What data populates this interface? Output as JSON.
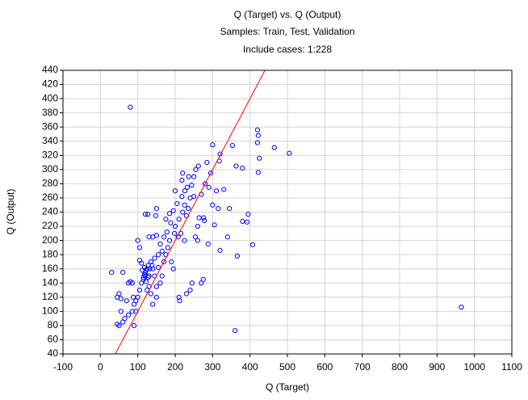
{
  "chart_data": {
    "type": "scatter",
    "title": "Q (Target) vs. Q (Output)",
    "subtitle": "Samples: Train, Test, Validation",
    "annotation": "Include cases: 1:228",
    "x_label": "Q (Target)",
    "y_label": "Q (Output)",
    "xlim": [
      -100,
      1100
    ],
    "ylim": [
      40,
      440
    ],
    "xticks": [
      -100,
      0,
      100,
      200,
      300,
      400,
      500,
      600,
      700,
      800,
      900,
      1000,
      1100
    ],
    "yticks": [
      40,
      60,
      80,
      100,
      120,
      140,
      160,
      180,
      200,
      220,
      240,
      260,
      280,
      300,
      320,
      340,
      360,
      380,
      400,
      420,
      440
    ],
    "grid": true,
    "series": [
      {
        "style": "points",
        "color": "#0000ff",
        "x": [
          420,
          422,
          420,
          425,
          422,
          505,
          465,
          407,
          395,
          392,
          380,
          363,
          380,
          353,
          360,
          366,
          340,
          320,
          330,
          320,
          318,
          300,
          310,
          295,
          285,
          280,
          276,
          275,
          270,
          260,
          240,
          245,
          230,
          210,
          212,
          235,
          240,
          250,
          255,
          260,
          225,
          220,
          218,
          232,
          244,
          200,
          205,
          195,
          185,
          175,
          160,
          150,
          140,
          130,
          148,
          150,
          120,
          127,
          155,
          145,
          138,
          130,
          125,
          120,
          115,
          110,
          105,
          100,
          95,
          90,
          85,
          80,
          75,
          88,
          100,
          105,
          105,
          110,
          118,
          120,
          122,
          128,
          130,
          135,
          140,
          150,
          160,
          165,
          170,
          175,
          180,
          185,
          190,
          195,
          200,
          210,
          215,
          220,
          225,
          230,
          150,
          60,
          50,
          45,
          55,
          65,
          75,
          30,
          60,
          90,
          50,
          55,
          95,
          85,
          70,
          45,
          112,
          125,
          132,
          140,
          145,
          155,
          165,
          170,
          178,
          188,
          198,
          208,
          218,
          226,
          236,
          250,
          262,
          270,
          290,
          300,
          305,
          315,
          345,
          264,
          278,
          288,
          254,
          80,
          965,
          115,
          118,
          122,
          128,
          135
        ],
        "values": [
          356,
          348,
          338,
          316,
          296,
          323,
          331,
          194,
          237,
          226,
          227,
          305,
          302,
          334,
          73,
          178,
          205,
          186,
          272,
          322,
          312,
          335,
          270,
          295,
          310,
          280,
          232,
          145,
          140,
          200,
          130,
          140,
          125,
          120,
          115,
          245,
          260,
          290,
          300,
          220,
          200,
          295,
          285,
          275,
          278,
          270,
          252,
          242,
          238,
          230,
          195,
          207,
          205,
          205,
          235,
          245,
          237,
          237,
          180,
          175,
          165,
          150,
          160,
          155,
          145,
          140,
          130,
          120,
          115,
          110,
          140,
          142,
          140,
          120,
          200,
          190,
          172,
          168,
          162,
          150,
          142,
          148,
          135,
          125,
          110,
          135,
          140,
          150,
          170,
          180,
          190,
          200,
          170,
          160,
          220,
          230,
          210,
          240,
          250,
          235,
          120,
          85,
          80,
          82,
          100,
          90,
          95,
          155,
          155,
          80,
          125,
          118,
          100,
          100,
          115,
          120,
          158,
          130,
          160,
          160,
          150,
          162,
          185,
          205,
          212,
          225,
          210,
          205,
          262,
          270,
          290,
          262,
          305,
          265,
          275,
          250,
          222,
          245,
          245,
          232,
          228,
          195,
          205,
          388,
          106,
          148,
          152,
          158,
          165,
          170
        ]
      },
      {
        "style": "line",
        "color": "#ff0000",
        "x": [
          40,
          440
        ],
        "values": [
          40,
          440
        ]
      }
    ]
  }
}
